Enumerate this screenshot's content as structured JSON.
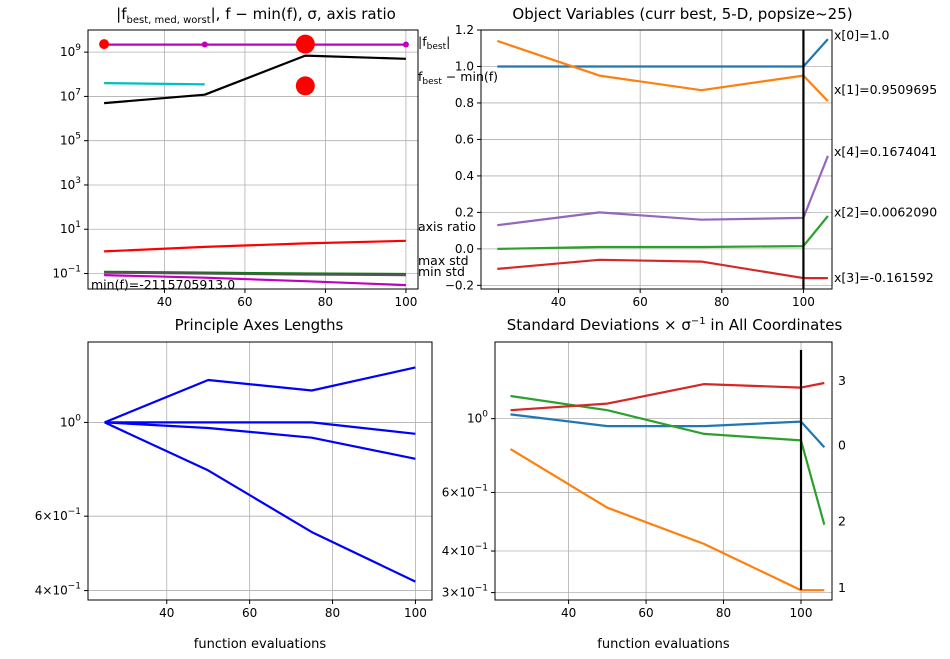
{
  "chart_data": [
    {
      "id": "fvalues",
      "type": "line",
      "title": "|f_best,med,worst|, f − min(f), σ, axis ratio",
      "title_parts": {
        "pre": "|f",
        "sub": "best, med, worst",
        "post": "|, f − min(f), σ, axis ratio"
      },
      "yscale": "log",
      "xlim": [
        21,
        103
      ],
      "ylim": [
        0.02,
        10000000000.0
      ],
      "xticks": [
        40,
        60,
        80,
        100
      ],
      "yticks": [
        {
          "v": 1000000000.0,
          "label": "10^9"
        },
        {
          "v": 10000000.0,
          "label": "10^7"
        },
        {
          "v": 100000.0,
          "label": "10^5"
        },
        {
          "v": 1000.0,
          "label": "10^3"
        },
        {
          "v": 10,
          "label": "10^1"
        },
        {
          "v": 0.1,
          "label": "10^−1"
        }
      ],
      "grid": true,
      "series": [
        {
          "name": "|f_best|",
          "color": "#bf00bf",
          "x": [
            25,
            50,
            75,
            100
          ],
          "y": [
            2200000000.0,
            2200000000.0,
            2200000000.0,
            2200000000.0
          ],
          "markers": true
        },
        {
          "color": "#000000",
          "x": [
            25,
            50,
            75,
            100
          ],
          "y": [
            5000000.0,
            12000000.0,
            700000000.0,
            500000000.0
          ]
        },
        {
          "color": "#00bfbf",
          "x": [
            25,
            50
          ],
          "y": [
            40000000.0,
            35000000.0
          ]
        },
        {
          "name": "axis ratio",
          "color": "#ff0000",
          "x": [
            25,
            50,
            75,
            100
          ],
          "y": [
            1.0,
            1.6,
            2.3,
            3.0
          ]
        },
        {
          "name": "max std",
          "color": "#008000",
          "x": [
            25,
            50,
            75,
            100
          ],
          "y": [
            0.12,
            0.11,
            0.1,
            0.095
          ]
        },
        {
          "color": "#555555",
          "x": [
            25,
            50,
            75,
            100
          ],
          "y": [
            0.11,
            0.1,
            0.09,
            0.085
          ]
        },
        {
          "name": "min std",
          "color": "#bf00bf",
          "x": [
            25,
            50,
            75,
            100
          ],
          "y": [
            0.085,
            0.065,
            0.045,
            0.03
          ]
        }
      ],
      "red_dots_small": {
        "color": "#ff0000",
        "x": [
          25
        ],
        "y": [
          2300000000.0
        ]
      },
      "red_dots_big": {
        "color": "#ff0000",
        "x": [
          75,
          75
        ],
        "y": [
          2300000000.0,
          30000000.0
        ]
      },
      "annotations": [
        {
          "text": "|f_best|",
          "main": "|f",
          "sub": "best",
          "tail": "|",
          "x": 100,
          "y": 2200000000.0
        },
        {
          "text": "f_best − min(f)",
          "main": "f",
          "sub": "best",
          "tail": " − min(f)",
          "x": 100,
          "y": 500000000.0
        },
        {
          "text": "axis ratio",
          "x": 100,
          "y": 3.0
        },
        {
          "text": "max std",
          "x": 100,
          "y": 0.12
        },
        {
          "text": "min std",
          "x": 100,
          "y": 0.07
        }
      ],
      "footer_text": "min(f)=-2115705913.0"
    },
    {
      "id": "xvars",
      "type": "line",
      "title": "Object Variables (curr best, 5-D, popsize~25)",
      "yscale": "linear",
      "xlim": [
        21,
        107
      ],
      "ylim": [
        -0.22,
        1.2
      ],
      "xticks": [
        40,
        60,
        80,
        100
      ],
      "yticks": [
        {
          "v": 1.2,
          "label": "1.2"
        },
        {
          "v": 1.0,
          "label": "1.0"
        },
        {
          "v": 0.8,
          "label": "0.8"
        },
        {
          "v": 0.6,
          "label": "0.6"
        },
        {
          "v": 0.4,
          "label": "0.4"
        },
        {
          "v": 0.2,
          "label": "0.2"
        },
        {
          "v": 0.0,
          "label": "0.0"
        },
        {
          "v": -0.2,
          "label": "−0.2"
        }
      ],
      "grid": true,
      "vline_x": 100,
      "series": [
        {
          "color": "#1f77b4",
          "x": [
            25,
            50,
            75,
            100,
            106
          ],
          "y": [
            1.0,
            1.0,
            1.0,
            1.0,
            1.15
          ]
        },
        {
          "color": "#ff7f0e",
          "x": [
            25,
            50,
            75,
            100,
            106
          ],
          "y": [
            1.14,
            0.95,
            0.87,
            0.95,
            0.81
          ]
        },
        {
          "color": "#9467bd",
          "x": [
            25,
            50,
            75,
            100,
            106
          ],
          "y": [
            0.13,
            0.2,
            0.16,
            0.17,
            0.51
          ]
        },
        {
          "color": "#2ca02c",
          "x": [
            25,
            50,
            75,
            100,
            106
          ],
          "y": [
            0.0,
            0.01,
            0.01,
            0.015,
            0.18
          ]
        },
        {
          "color": "#d62728",
          "x": [
            25,
            50,
            75,
            100,
            106
          ],
          "y": [
            -0.11,
            -0.06,
            -0.07,
            -0.16,
            -0.16
          ]
        }
      ],
      "labels": [
        {
          "text": "x[0]=1.0",
          "y": 1.17
        },
        {
          "text": "x[1]=0.9509695",
          "y": 0.87
        },
        {
          "text": "x[4]=0.1674041",
          "y": 0.53
        },
        {
          "text": "x[2]=0.0062090",
          "y": 0.2
        },
        {
          "text": "x[3]=-0.161592",
          "y": -0.16
        }
      ]
    },
    {
      "id": "axes",
      "type": "line",
      "title": "Principle Axes Lengths",
      "yscale": "log",
      "xlim": [
        21,
        104
      ],
      "ylim": [
        0.38,
        1.55
      ],
      "xticks": [
        40,
        60,
        80,
        100
      ],
      "yticks": [
        {
          "v": 1.0,
          "label": "10^0"
        },
        {
          "v": 0.6,
          "label": "6×10^−1"
        },
        {
          "v": 0.4,
          "label": "4×10^−1"
        }
      ],
      "grid": true,
      "xlabel": "function evaluations",
      "series": [
        {
          "color": "#0000ff",
          "x": [
            25,
            50,
            75,
            100
          ],
          "y": [
            1.0,
            1.26,
            1.19,
            1.35
          ]
        },
        {
          "color": "#0000ff",
          "x": [
            25,
            50,
            75,
            100
          ],
          "y": [
            1.0,
            1.0,
            1.0,
            0.94
          ]
        },
        {
          "color": "#0000ff",
          "x": [
            25,
            50,
            75,
            100
          ],
          "y": [
            1.0,
            0.97,
            0.92,
            0.82
          ]
        },
        {
          "color": "#0000ff",
          "x": [
            25,
            50,
            75,
            100
          ],
          "y": [
            1.0,
            0.77,
            0.55,
            0.42
          ]
        }
      ]
    },
    {
      "id": "stds",
      "type": "line",
      "title": "Standard Deviations × σ^−1 in All Coordinates",
      "title_parts": {
        "pre": "Standard Deviations × σ",
        "sup": "−1",
        "post": " in All Coordinates"
      },
      "yscale": "log",
      "xlim": [
        21,
        108
      ],
      "ylim": [
        0.285,
        1.7
      ],
      "xticks": [
        40,
        60,
        80,
        100
      ],
      "yticks": [
        {
          "v": 1.0,
          "label": "10^0"
        },
        {
          "v": 0.6,
          "label": "6×10^−1"
        },
        {
          "v": 0.4,
          "label": "4×10^−1"
        },
        {
          "v": 0.3,
          "label": "3×10^−1"
        }
      ],
      "grid": true,
      "xlabel": "function evaluations",
      "vline_x": 100,
      "series": [
        {
          "color": "#1f77b4",
          "x": [
            25,
            50,
            75,
            100,
            106
          ],
          "y": [
            1.03,
            0.95,
            0.95,
            0.98,
            0.82
          ]
        },
        {
          "color": "#ff7f0e",
          "x": [
            25,
            50,
            75,
            100,
            106
          ],
          "y": [
            0.81,
            0.54,
            0.42,
            0.305,
            0.305
          ]
        },
        {
          "color": "#2ca02c",
          "x": [
            25,
            50,
            75,
            100,
            106
          ],
          "y": [
            1.17,
            1.06,
            0.9,
            0.86,
            0.48
          ]
        },
        {
          "color": "#d62728",
          "x": [
            25,
            50,
            75,
            100,
            106
          ],
          "y": [
            1.06,
            1.11,
            1.27,
            1.24,
            1.28
          ]
        }
      ],
      "labels": [
        {
          "text": "3",
          "y": 1.3
        },
        {
          "text": "0",
          "y": 0.83
        },
        {
          "text": "2",
          "y": 0.49
        },
        {
          "text": "1",
          "y": 0.31
        }
      ]
    }
  ]
}
